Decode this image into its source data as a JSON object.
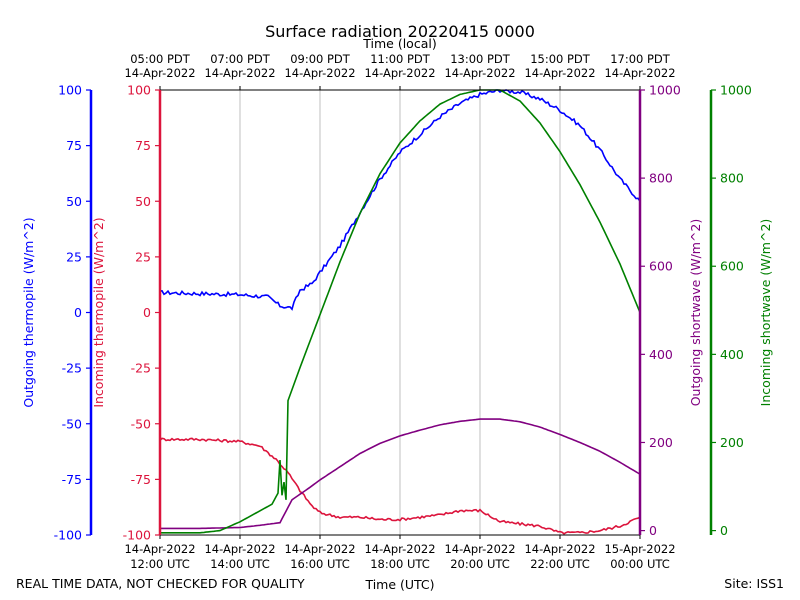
{
  "chart_data": {
    "type": "line",
    "title": "Surface radiation 20220415 0000",
    "top_axis_label": "Time (local)",
    "bottom_axis_label": "Time (UTC)",
    "footer_left": "REAL TIME DATA, NOT CHECKED FOR QUALITY",
    "footer_right": "Site: ISS1",
    "x_utc_hours_range": [
      12,
      24
    ],
    "x_ticks_utc": [
      {
        "hour": 12,
        "line1": "14-Apr-2022",
        "line2": "12:00 UTC"
      },
      {
        "hour": 14,
        "line1": "14-Apr-2022",
        "line2": "14:00 UTC"
      },
      {
        "hour": 16,
        "line1": "14-Apr-2022",
        "line2": "16:00 UTC"
      },
      {
        "hour": 18,
        "line1": "14-Apr-2022",
        "line2": "18:00 UTC"
      },
      {
        "hour": 20,
        "line1": "14-Apr-2022",
        "line2": "20:00 UTC"
      },
      {
        "hour": 22,
        "line1": "14-Apr-2022",
        "line2": "22:00 UTC"
      },
      {
        "hour": 24,
        "line1": "15-Apr-2022",
        "line2": "00:00 UTC"
      }
    ],
    "x_ticks_local": [
      {
        "hour": 12,
        "line1": "05:00 PDT",
        "line2": "14-Apr-2022"
      },
      {
        "hour": 14,
        "line1": "07:00 PDT",
        "line2": "14-Apr-2022"
      },
      {
        "hour": 16,
        "line1": "09:00 PDT",
        "line2": "14-Apr-2022"
      },
      {
        "hour": 18,
        "line1": "11:00 PDT",
        "line2": "14-Apr-2022"
      },
      {
        "hour": 20,
        "line1": "13:00 PDT",
        "line2": "14-Apr-2022"
      },
      {
        "hour": 22,
        "line1": "15:00 PDT",
        "line2": "14-Apr-2022"
      },
      {
        "hour": 24,
        "line1": "17:00 PDT",
        "line2": "14-Apr-2022"
      }
    ],
    "axes": {
      "outgoing_thermopile": {
        "label": "Outgoing thermopile (W/m^2)",
        "color": "#0000ff",
        "ylim": [
          -100,
          100
        ],
        "ticks": [
          -100,
          -75,
          -50,
          -25,
          0,
          25,
          50,
          75,
          100
        ]
      },
      "incoming_thermopile": {
        "label": "Incoming thermopile (W/m^2)",
        "color": "#dc143c",
        "ylim": [
          -100,
          100
        ],
        "ticks": [
          -100,
          -75,
          -50,
          -25,
          0,
          25,
          50,
          75,
          100
        ]
      },
      "outgoing_shortwave": {
        "label": "Outgoing shortwave (W/m^2)",
        "color": "#800080",
        "ylim": [
          -10,
          1000
        ],
        "ticks": [
          0,
          200,
          400,
          600,
          800,
          1000
        ]
      },
      "incoming_shortwave": {
        "label": "Incoming shortwave (W/m^2)",
        "color": "#008000",
        "ylim": [
          -10,
          1000
        ],
        "ticks": [
          0,
          200,
          400,
          600,
          800,
          1000
        ]
      }
    },
    "series": [
      {
        "name": "Outgoing thermopile",
        "axis": "outgoing_thermopile",
        "color": "#0000ff",
        "noise": 0.9,
        "x": [
          12,
          13,
          14,
          14.7,
          15.0,
          15.3,
          15.5,
          15.8,
          16,
          16.5,
          17,
          17.5,
          18,
          18.5,
          19,
          19.5,
          20,
          20.5,
          21,
          21.5,
          22,
          22.5,
          23,
          23.5,
          24
        ],
        "y": [
          9,
          8.5,
          8,
          7,
          3,
          2,
          10,
          13,
          18,
          30,
          45,
          60,
          72,
          80,
          88,
          94,
          98,
          100,
          99,
          96,
          91,
          84,
          73,
          60,
          50
        ]
      },
      {
        "name": "Incoming thermopile",
        "axis": "incoming_thermopile",
        "color": "#dc143c",
        "noise": 0.6,
        "x": [
          12,
          12.5,
          13,
          14,
          14.5,
          14.9,
          15.2,
          15.5,
          15.8,
          16,
          16.5,
          17,
          17.5,
          18,
          18.5,
          19,
          19.5,
          20,
          20.5,
          21,
          21.5,
          22,
          22.5,
          23,
          23.5,
          24
        ],
        "y": [
          -57,
          -57,
          -57,
          -58,
          -60,
          -66,
          -72,
          -80,
          -87,
          -90,
          -92,
          -92,
          -93,
          -93,
          -92,
          -91,
          -89,
          -89,
          -94,
          -95,
          -96,
          -99,
          -99,
          -98,
          -96,
          -92
        ]
      },
      {
        "name": "Outgoing shortwave",
        "axis": "outgoing_shortwave",
        "color": "#800080",
        "noise": 0,
        "x": [
          12,
          13,
          14,
          14.5,
          15.0,
          15.3,
          15.7,
          16,
          16.5,
          17,
          17.5,
          18,
          18.5,
          19,
          19.5,
          20,
          20.5,
          21,
          21.5,
          22,
          22.5,
          23,
          23.5,
          24
        ],
        "y": [
          5,
          5,
          7,
          12,
          18,
          70,
          95,
          115,
          145,
          175,
          198,
          215,
          228,
          240,
          248,
          253,
          253,
          247,
          235,
          218,
          200,
          180,
          155,
          128
        ]
      },
      {
        "name": "Incoming shortwave",
        "axis": "incoming_shortwave",
        "color": "#008000",
        "noise": 0,
        "x": [
          12,
          13,
          13.5,
          14,
          14.5,
          14.8,
          14.95,
          15.0,
          15.05,
          15.1,
          15.15,
          15.2,
          15.3,
          15.5,
          16,
          16.5,
          17,
          17.5,
          18,
          18.5,
          19,
          19.5,
          20,
          20.5,
          21,
          21.5,
          22,
          22.5,
          23,
          23.5,
          24
        ],
        "y": [
          -5,
          -5,
          0,
          20,
          45,
          60,
          85,
          160,
          80,
          110,
          70,
          295,
          320,
          370,
          490,
          610,
          720,
          810,
          880,
          930,
          968,
          990,
          1000,
          1000,
          975,
          925,
          860,
          785,
          700,
          605,
          495
        ]
      }
    ]
  }
}
